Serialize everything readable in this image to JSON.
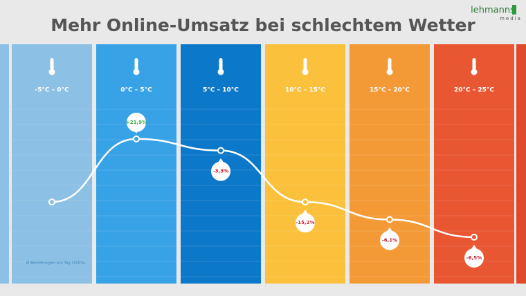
{
  "header": {
    "title": "Mehr Online-Umsatz bei schlechtem Wetter",
    "logo": "lehmanns",
    "logo_sub": "media"
  },
  "chart_data": {
    "type": "line",
    "categories": [
      "-5°C – 0°C",
      "0°C – 5°C",
      "5°C – 10°C",
      "10°C – 15°C",
      "15°C – 20°C",
      "20°C – 25°C"
    ],
    "column_colors": [
      "#8cc0e4",
      "#38a2e6",
      "#0c78c9",
      "#fbc13c",
      "#f39a36",
      "#e95632"
    ],
    "values": [
      0,
      21.9,
      -3.3,
      -15.2,
      -6.1,
      -6.5
    ],
    "value_labels": [
      null,
      "+21,9%",
      "-3,3%",
      "-15,2%",
      "-6,1%",
      "-6,5%"
    ],
    "label_colors": [
      "#3cae3c",
      "#3cae3c",
      "#c8202a",
      "#c8202a",
      "#c8202a",
      "#c8202a"
    ],
    "line_color": "#ffffff",
    "footnote": "Ø Bestellungen pro Tag (100%)"
  }
}
